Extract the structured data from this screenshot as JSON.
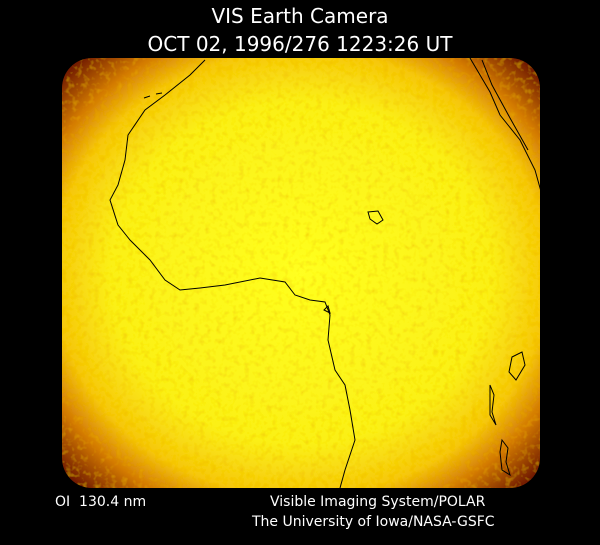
{
  "header": {
    "title": "VIS Earth Camera",
    "subtitle": "OCT 02, 1996/276 1223:26 UT"
  },
  "footer": {
    "left": "OI  130.4 nm",
    "right": [
      "Visible Imaging System/POLAR",
      "The University of Iowa/NASA-GSFC"
    ]
  }
}
